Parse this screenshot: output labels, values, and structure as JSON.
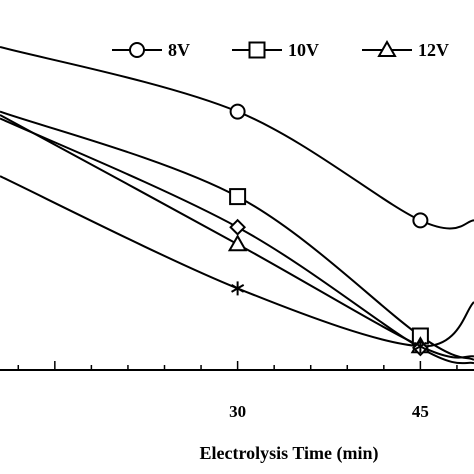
{
  "chart_data": {
    "type": "line",
    "xlabel": "Electrolysis  Time (min)",
    "ylabel": "",
    "title": "",
    "x_ticks": [
      30,
      45
    ],
    "xlim": [
      10.5,
      49.4
    ],
    "ylim": [
      0,
      1
    ],
    "grid": false,
    "legend": {
      "placement": "top-right",
      "entries": [
        "8V",
        "10V",
        "12V"
      ]
    },
    "series": [
      {
        "name": "8V",
        "marker": "circle",
        "show_in_legend": true,
        "points": [
          [
            10.5,
            0.95
          ],
          [
            30,
            0.76
          ],
          [
            45,
            0.44
          ],
          [
            49.4,
            0.44
          ]
        ]
      },
      {
        "name": "10V",
        "marker": "square",
        "show_in_legend": true,
        "points": [
          [
            10.5,
            0.76
          ],
          [
            30,
            0.51
          ],
          [
            45,
            0.1
          ],
          [
            49.4,
            0.03
          ]
        ]
      },
      {
        "name": "12V",
        "marker": "triangle",
        "show_in_legend": true,
        "points": [
          [
            10.5,
            0.75
          ],
          [
            30,
            0.37
          ],
          [
            45,
            0.07
          ],
          [
            49.4,
            0.04
          ]
        ]
      },
      {
        "name": "",
        "marker": "diamond",
        "show_in_legend": false,
        "points": [
          [
            10.5,
            0.74
          ],
          [
            30,
            0.42
          ],
          [
            45,
            0.065
          ],
          [
            49.4,
            0.02
          ]
        ]
      },
      {
        "name": "",
        "marker": "asterisk",
        "show_in_legend": false,
        "points": [
          [
            10.5,
            0.57
          ],
          [
            30,
            0.24
          ],
          [
            45,
            0.07
          ],
          [
            49.4,
            0.2
          ]
        ]
      }
    ]
  }
}
